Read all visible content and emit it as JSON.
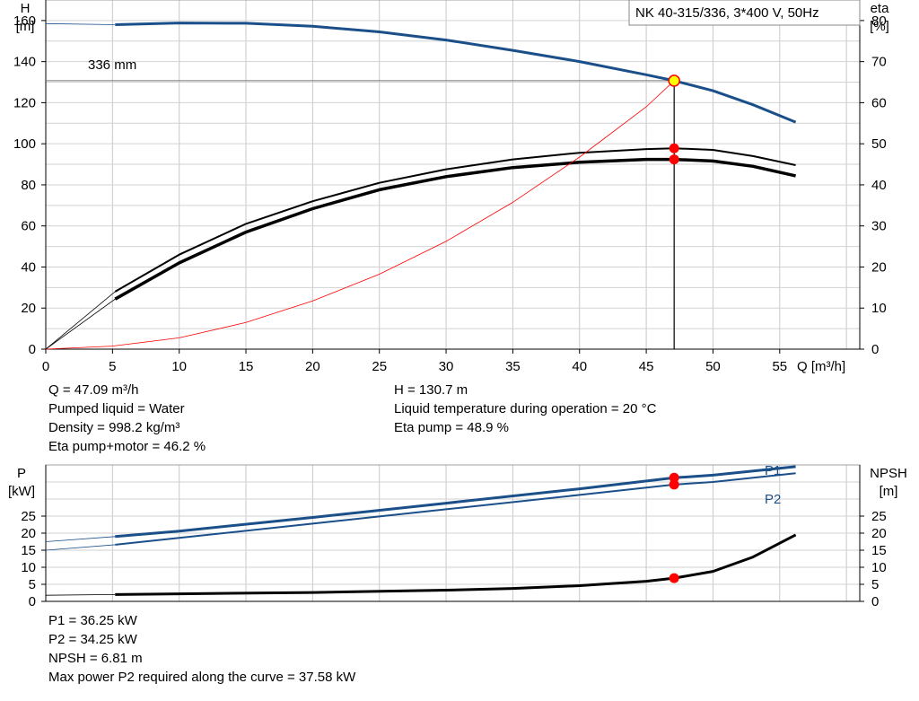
{
  "title_box": "NK 40-315/336, 3*400 V, 50Hz",
  "colors": {
    "curve_blue": "#1b4f8a",
    "curve_black": "#000000",
    "system_curve": "#ff0000",
    "grid": "#c0c0c0",
    "op_point": "#ff0000",
    "op_point_head": "#ffff00"
  },
  "chart_data": [
    {
      "type": "line",
      "title": "NK 40-315/336, 3*400 V, 50Hz",
      "xlabel": "Q [m³/h]",
      "ylabel_left": [
        "H",
        "[m]"
      ],
      "ylabel_right": [
        "eta",
        "[%]"
      ],
      "xlim": [
        0,
        61
      ],
      "ylim_left": [
        0,
        170
      ],
      "ylim_right": [
        0,
        85
      ],
      "x_ticks": [
        0,
        5,
        10,
        15,
        20,
        25,
        30,
        35,
        40,
        45,
        50,
        55
      ],
      "y_ticks_left": [
        0,
        20,
        40,
        60,
        80,
        100,
        120,
        140,
        160
      ],
      "y_ticks_right": [
        0,
        10,
        20,
        30,
        40,
        50,
        60,
        70,
        80
      ],
      "grid": true,
      "annotation": "336 mm",
      "series": [
        {
          "axis": "left",
          "color": "#1b4f8a",
          "width": 3,
          "x": [
            0,
            5.2,
            10,
            15,
            20,
            25,
            30,
            35,
            40,
            45,
            47.09,
            50,
            53,
            56.2
          ],
          "y": [
            158.5,
            158,
            158.8,
            158.7,
            157.2,
            154.5,
            150.5,
            145.5,
            140,
            133.6,
            130.7,
            125.8,
            119,
            110.5
          ],
          "dashed_extension_to": 5.2
        },
        {
          "axis": "right",
          "color": "#000000",
          "width": 2,
          "x": [
            0,
            5.2,
            10,
            15,
            20,
            25,
            30,
            35,
            40,
            45,
            47.09,
            50,
            53,
            56.2
          ],
          "y": [
            0,
            14,
            23,
            30.5,
            36,
            40.5,
            43.8,
            46.2,
            47.8,
            48.7,
            48.9,
            48.5,
            47,
            44.8
          ]
        },
        {
          "axis": "right",
          "color": "#000000",
          "width": 3.5,
          "x": [
            0,
            5.2,
            10,
            15,
            20,
            25,
            30,
            35,
            40,
            45,
            47.09,
            50,
            53,
            56.2
          ],
          "y": [
            0,
            12.2,
            21,
            28.5,
            34.2,
            38.8,
            42,
            44.2,
            45.5,
            46.2,
            46.2,
            45.8,
            44.5,
            42.2
          ]
        },
        {
          "axis": "left",
          "color": "#ff0000",
          "width": 0.8,
          "x": [
            0,
            5,
            10,
            15,
            20,
            25,
            30,
            35,
            40,
            45,
            47.09
          ],
          "y": [
            0,
            1.5,
            5.5,
            13,
            23.5,
            36.5,
            52.5,
            71.5,
            93.5,
            118,
            130.7
          ]
        }
      ],
      "operating_point": {
        "x": 47.09,
        "head": 130.7,
        "eta_pump": 48.9,
        "eta_total": 46.2
      }
    },
    {
      "type": "line",
      "xlim": [
        0,
        61
      ],
      "ylabel_left": [
        "P",
        "[kW]"
      ],
      "ylabel_right": [
        "NPSH",
        "[m]"
      ],
      "ylim": [
        0,
        40
      ],
      "y_ticks": [
        0,
        5,
        10,
        15,
        20,
        25
      ],
      "grid": true,
      "series": [
        {
          "name": "P1",
          "axis": "left",
          "color": "#1b4f8a",
          "width": 3,
          "x": [
            0,
            5.2,
            10,
            20,
            30,
            40,
            47.09,
            50,
            56.2
          ],
          "y": [
            17.5,
            19,
            20.6,
            24.6,
            28.8,
            33,
            36.25,
            37,
            39.5
          ]
        },
        {
          "name": "P2",
          "axis": "left",
          "color": "#1b4f8a",
          "width": 2,
          "x": [
            0,
            5.2,
            10,
            20,
            30,
            40,
            47.09,
            50,
            56.2
          ],
          "y": [
            15,
            16.6,
            18.6,
            22.8,
            27,
            31.2,
            34.25,
            35,
            37.58
          ]
        },
        {
          "name": "NPSH",
          "axis": "right",
          "color": "#000000",
          "width": 3,
          "x": [
            0,
            5.2,
            10,
            20,
            30,
            35,
            40,
            45,
            47.09,
            50,
            53,
            56.2
          ],
          "y": [
            1.8,
            2,
            2.2,
            2.6,
            3.3,
            3.8,
            4.6,
            5.9,
            6.81,
            8.8,
            13,
            19.5
          ]
        }
      ],
      "operating_point": {
        "x": 47.09,
        "p1": 36.25,
        "p2": 34.25,
        "npsh": 6.81
      }
    }
  ],
  "results": {
    "left": [
      "Q = 47.09 m³/h",
      "Pumped liquid = Water",
      "Density = 998.2 kg/m³",
      "Eta pump+motor = 46.2 %"
    ],
    "right": [
      "H = 130.7 m",
      "Liquid temperature during operation = 20 °C",
      "Eta pump = 48.9 %"
    ],
    "bottom": [
      "P1 = 36.25 kW",
      "P2 = 34.25 kW",
      "NPSH = 6.81 m",
      "Max power P2 required along the curve = 37.58 kW"
    ]
  }
}
